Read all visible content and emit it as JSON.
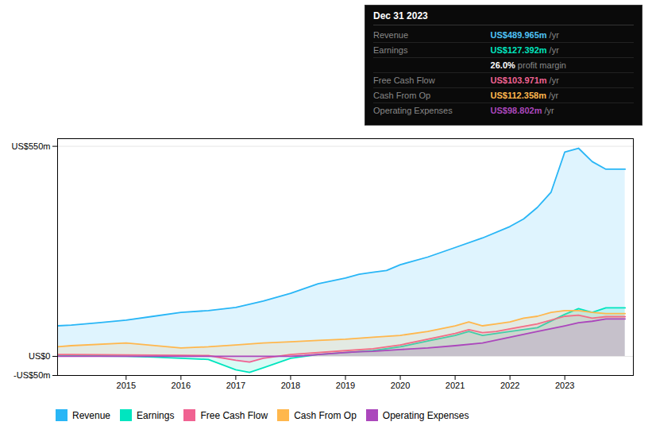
{
  "chart_data": {
    "type": "area",
    "xlim": [
      2013.75,
      2024.25
    ],
    "xticks": [
      2015,
      2016,
      2017,
      2018,
      2019,
      2020,
      2021,
      2022,
      2023
    ],
    "ylim": [
      -50,
      570
    ],
    "yticks": [
      {
        "value": -50,
        "label": "-US$50m"
      },
      {
        "value": 0,
        "label": "US$0"
      },
      {
        "value": 550,
        "label": "US$550m"
      }
    ],
    "grid": true,
    "legend": "bottom",
    "series": [
      {
        "name": "Revenue",
        "color": "#29b6f6",
        "x": [
          2013.75,
          2014.0,
          2014.5,
          2015.0,
          2015.5,
          2016.0,
          2016.5,
          2017.0,
          2017.5,
          2018.0,
          2018.5,
          2019.0,
          2019.25,
          2019.5,
          2019.75,
          2020.0,
          2020.5,
          2021.0,
          2021.5,
          2022.0,
          2022.25,
          2022.5,
          2022.75,
          2023.0,
          2023.25,
          2023.5,
          2023.75,
          2024.1
        ],
        "values": [
          80,
          82,
          88,
          95,
          105,
          115,
          120,
          128,
          145,
          165,
          190,
          205,
          215,
          220,
          225,
          240,
          260,
          285,
          310,
          340,
          360,
          390,
          430,
          535,
          545,
          510,
          490,
          490
        ]
      },
      {
        "name": "Earnings",
        "color": "#00e5bf",
        "x": [
          2013.75,
          2014.0,
          2014.5,
          2015.0,
          2015.5,
          2016.0,
          2016.5,
          2017.0,
          2017.25,
          2017.5,
          2018.0,
          2018.5,
          2019.0,
          2019.5,
          2020.0,
          2020.5,
          2021.0,
          2021.25,
          2021.5,
          2021.75,
          2022.0,
          2022.5,
          2023.0,
          2023.25,
          2023.5,
          2023.75,
          2024.1
        ],
        "values": [
          2,
          2,
          1,
          0,
          -2,
          -5,
          -8,
          -35,
          -42,
          -30,
          -5,
          5,
          10,
          15,
          25,
          40,
          55,
          65,
          55,
          60,
          65,
          75,
          110,
          125,
          115,
          127,
          127
        ]
      },
      {
        "name": "Free Cash Flow",
        "color": "#f06292",
        "x": [
          2013.75,
          2014.0,
          2015.0,
          2016.0,
          2016.5,
          2017.0,
          2017.25,
          2017.5,
          2018.0,
          2018.5,
          2019.0,
          2019.5,
          2020.0,
          2020.5,
          2021.0,
          2021.25,
          2021.5,
          2021.75,
          2022.0,
          2022.5,
          2023.0,
          2023.25,
          2023.5,
          2023.75,
          2024.1
        ],
        "values": [
          5,
          5,
          4,
          3,
          2,
          -10,
          -15,
          -5,
          5,
          10,
          15,
          20,
          30,
          45,
          60,
          70,
          62,
          65,
          72,
          85,
          105,
          108,
          100,
          104,
          104
        ]
      },
      {
        "name": "Cash From Op",
        "color": "#ffb74d",
        "x": [
          2013.75,
          2014.0,
          2015.0,
          2016.0,
          2016.5,
          2017.0,
          2017.5,
          2018.0,
          2018.5,
          2019.0,
          2019.5,
          2020.0,
          2020.5,
          2021.0,
          2021.25,
          2021.5,
          2021.75,
          2022.0,
          2022.25,
          2022.5,
          2022.75,
          2023.0,
          2023.25,
          2023.5,
          2023.75,
          2024.1
        ],
        "values": [
          25,
          28,
          35,
          22,
          25,
          30,
          35,
          38,
          42,
          45,
          50,
          55,
          65,
          80,
          90,
          80,
          85,
          90,
          100,
          105,
          115,
          120,
          120,
          115,
          112,
          112
        ]
      },
      {
        "name": "Operating Expenses",
        "color": "#ab47bc",
        "x": [
          2013.75,
          2014.0,
          2015.0,
          2016.0,
          2017.0,
          2018.0,
          2018.25,
          2018.5,
          2019.0,
          2019.25,
          2019.5,
          2020.0,
          2020.5,
          2021.0,
          2021.5,
          2022.0,
          2022.5,
          2023.0,
          2023.25,
          2023.5,
          2023.75,
          2024.1
        ],
        "values": [
          0,
          0,
          0,
          0,
          0,
          0,
          2,
          5,
          10,
          12,
          13,
          18,
          22,
          28,
          35,
          50,
          65,
          80,
          88,
          92,
          98,
          98
        ]
      }
    ],
    "annotations": {
      "heading": "Dec 31 2023",
      "rows": [
        {
          "label": "Revenue",
          "text": "US$489.965m",
          "suffix": " /yr",
          "color": "#4fc3f7"
        },
        {
          "label": "Earnings",
          "text": "US$127.392m",
          "suffix": " /yr",
          "color": "#00e5bf"
        },
        {
          "text": "26.0%",
          "suffix": " profit margin",
          "color": "#ffffff"
        },
        {
          "label": "Free Cash Flow",
          "text": "US$103.971m",
          "suffix": " /yr",
          "color": "#f06292"
        },
        {
          "label": "Cash From Op",
          "text": "US$112.358m",
          "suffix": " /yr",
          "color": "#ffb74d"
        },
        {
          "label": "Operating Expenses",
          "text": "US$98.802m",
          "suffix": " /yr",
          "color": "#ab47bc"
        }
      ]
    }
  }
}
